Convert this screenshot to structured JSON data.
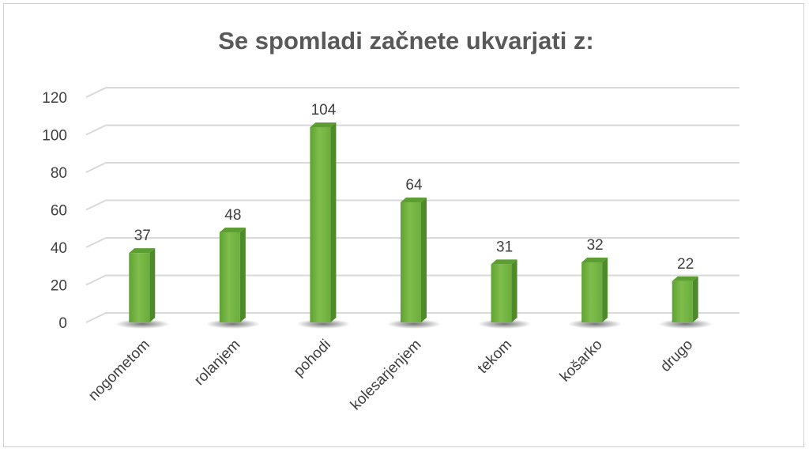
{
  "chart_data": {
    "type": "bar",
    "title": "Se spomladi začnete ukvarjati z:",
    "xlabel": "",
    "ylabel": "",
    "categories": [
      "nogometom",
      "rolanjem",
      "pohodi",
      "kolesarjenjem",
      "tekom",
      "košarko",
      "drugo"
    ],
    "values": [
      37,
      48,
      104,
      64,
      31,
      32,
      22
    ],
    "ylim": [
      0,
      120
    ],
    "yticks": [
      0,
      20,
      40,
      60,
      80,
      100,
      120
    ],
    "grid": true,
    "legend": "none",
    "data_labels": true,
    "style": "3d-column",
    "colors": {
      "bar_front": "#78b545",
      "bar_side": "#4e8a2a",
      "bar_top": "#5d9e33",
      "grid": "#d9d9d9",
      "text": "#404040",
      "title": "#595959"
    }
  }
}
